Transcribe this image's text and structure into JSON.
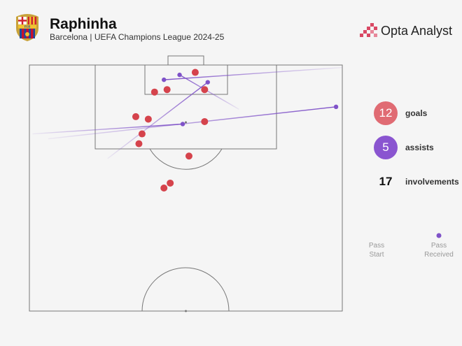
{
  "header": {
    "player": "Raphinha",
    "subtitle": "Barcelona | UEFA Champions League 2024-25",
    "crest_letters": "FCB",
    "brand": "Opta Analyst"
  },
  "stats": {
    "goals": {
      "value": "12",
      "label": "goals",
      "color": "#e06b73"
    },
    "assists": {
      "value": "5",
      "label": "assists",
      "color": "#8a55d0"
    },
    "involvements": {
      "value": "17",
      "label": "involvements"
    }
  },
  "legend": {
    "start": [
      "Pass",
      "Start"
    ],
    "end": [
      "Pass",
      "Received"
    ]
  },
  "colors": {
    "goal": "#d5434c",
    "assist": "#7f52c8",
    "pitch_line": "#777777",
    "background": "#f5f5f5"
  },
  "chart_data": {
    "type": "scatter",
    "pitch": "attacking-half",
    "goal_shots": [
      {
        "x": 0.53,
        "y": 0.97
      },
      {
        "x": 0.4,
        "y": 0.89
      },
      {
        "x": 0.44,
        "y": 0.9
      },
      {
        "x": 0.56,
        "y": 0.9
      },
      {
        "x": 0.34,
        "y": 0.79
      },
      {
        "x": 0.38,
        "y": 0.78
      },
      {
        "x": 0.56,
        "y": 0.77
      },
      {
        "x": 0.36,
        "y": 0.72
      },
      {
        "x": 0.35,
        "y": 0.68
      },
      {
        "x": 0.51,
        "y": 0.63
      },
      {
        "x": 0.45,
        "y": 0.52
      },
      {
        "x": 0.43,
        "y": 0.5
      }
    ],
    "assist_passes": [
      {
        "start": {
          "x": 1.0,
          "y": 0.99
        },
        "end": {
          "x": 0.43,
          "y": 0.94
        }
      },
      {
        "start": {
          "x": 0.67,
          "y": 0.82
        },
        "end": {
          "x": 0.48,
          "y": 0.96
        }
      },
      {
        "start": {
          "x": 0.25,
          "y": 0.62
        },
        "end": {
          "x": 0.57,
          "y": 0.93
        }
      },
      {
        "start": {
          "x": 0.06,
          "y": 0.7
        },
        "end": {
          "x": 0.98,
          "y": 0.83
        }
      },
      {
        "start": {
          "x": 0.01,
          "y": 0.72
        },
        "end": {
          "x": 0.49,
          "y": 0.76
        }
      }
    ]
  }
}
